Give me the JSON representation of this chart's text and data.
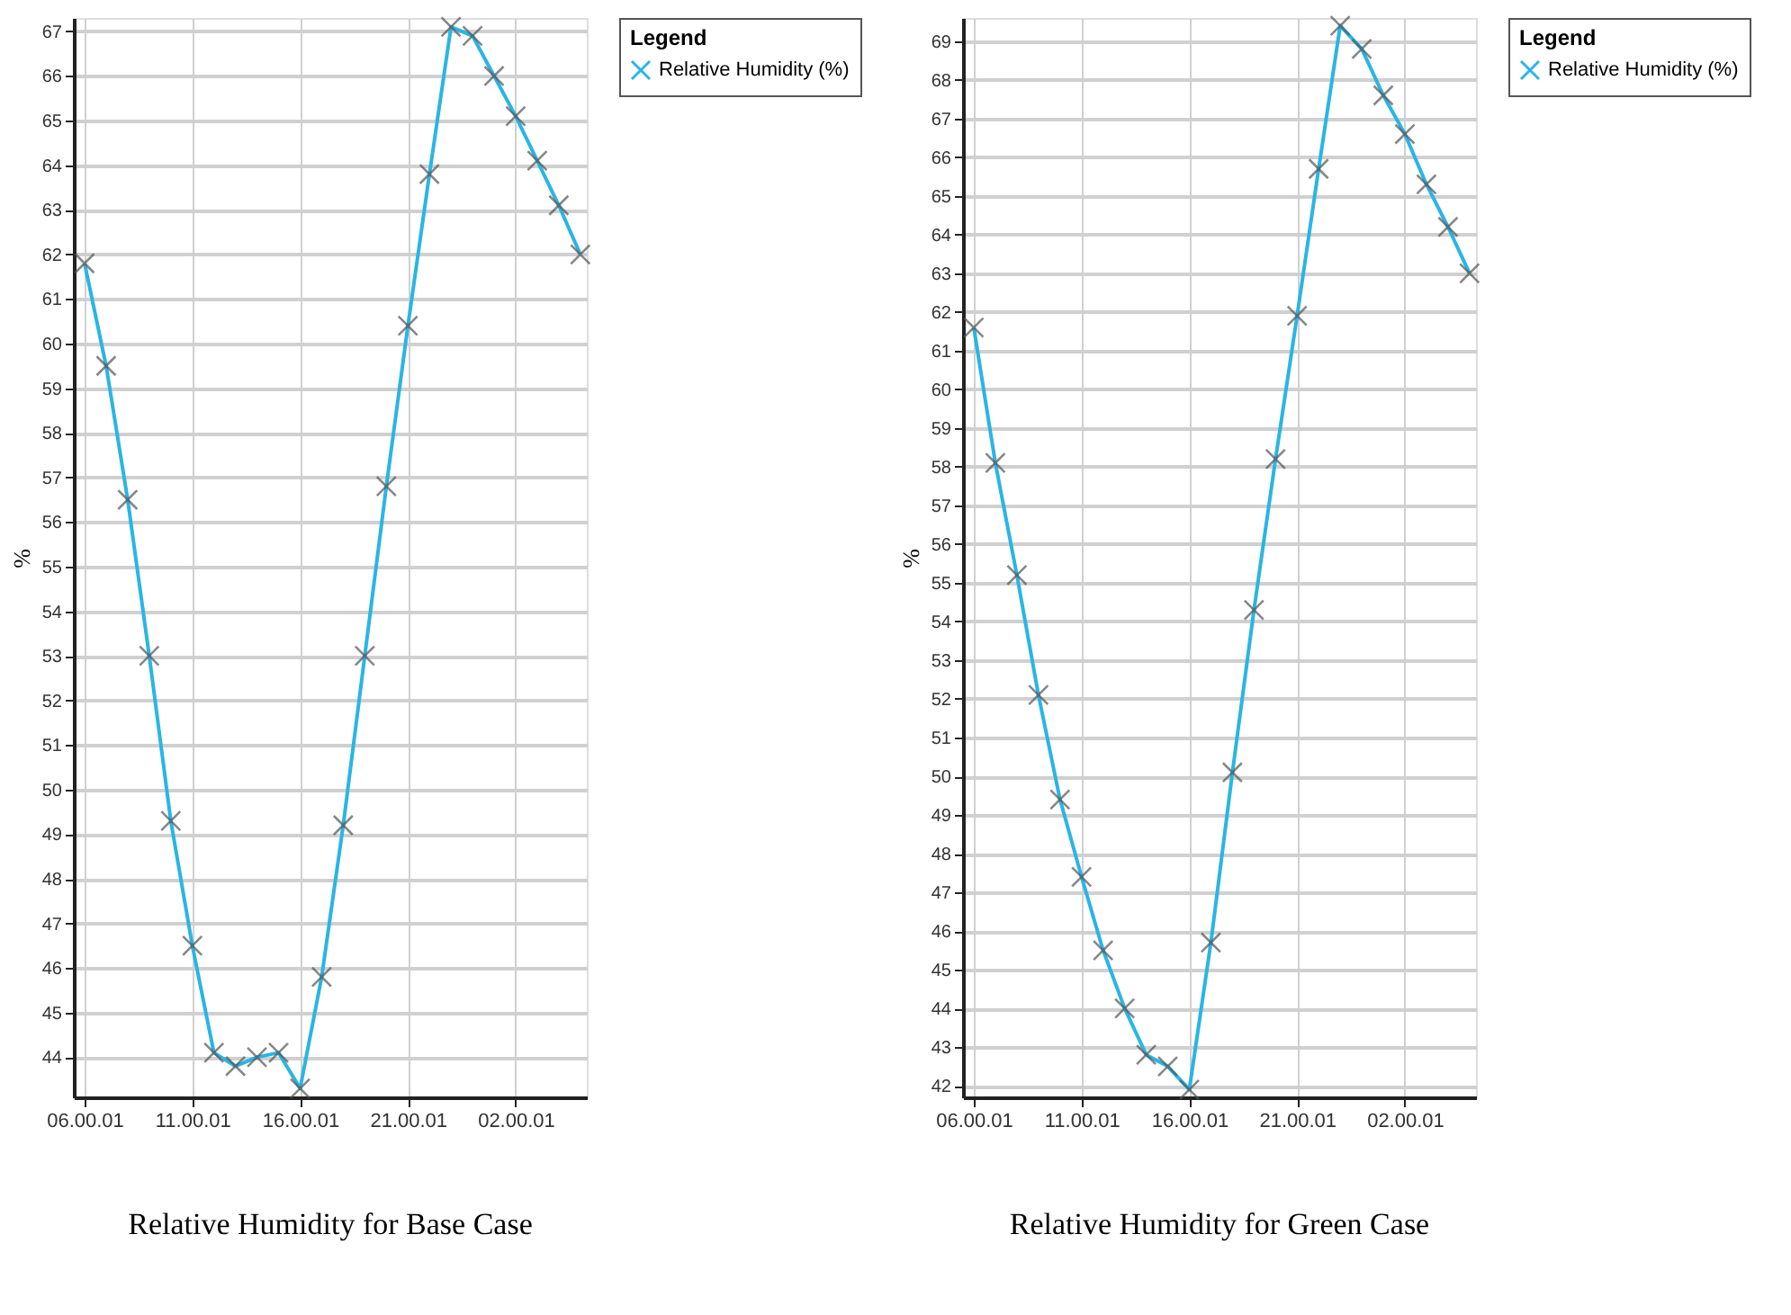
{
  "chart_data": [
    {
      "type": "line",
      "title": "Relative Humidity for Base Case",
      "ylabel": "%",
      "legend_title": "Legend",
      "legend": "right",
      "marker": "cross",
      "line_style": "solid",
      "grid": true,
      "categories": [
        "06.00.01",
        null,
        null,
        null,
        null,
        "11.00.01",
        null,
        null,
        null,
        null,
        "16.00.01",
        null,
        null,
        null,
        null,
        "21.00.01",
        null,
        null,
        null,
        null,
        "02.00.01",
        null,
        null,
        null
      ],
      "series": [
        {
          "name": "Relative Humidity (%)",
          "color": "#29b5e6",
          "values": [
            61.8,
            59.5,
            56.5,
            53.0,
            49.3,
            46.5,
            44.1,
            43.8,
            44.0,
            44.1,
            43.3,
            45.8,
            49.2,
            53.0,
            56.8,
            60.4,
            63.8,
            67.1,
            66.9,
            66.0,
            65.1,
            64.1,
            63.1,
            62.0
          ]
        }
      ],
      "ylim": [
        43.1,
        67.3
      ],
      "yticks": [
        44,
        45,
        46,
        47,
        48,
        49,
        50,
        51,
        52,
        53,
        54,
        55,
        56,
        57,
        58,
        59,
        60,
        61,
        62,
        63,
        64,
        65,
        66,
        67
      ]
    },
    {
      "type": "line",
      "title": "Relative Humidity for Green Case",
      "ylabel": "%",
      "legend_title": "Legend",
      "legend": "right",
      "marker": "cross",
      "line_style": "solid",
      "grid": true,
      "categories": [
        "06.00.01",
        null,
        null,
        null,
        null,
        "11.00.01",
        null,
        null,
        null,
        null,
        "16.00.01",
        null,
        null,
        null,
        null,
        "21.00.01",
        null,
        null,
        null,
        null,
        "02.00.01",
        null,
        null,
        null
      ],
      "series": [
        {
          "name": "Relative Humidity (%)",
          "color": "#29b5e6",
          "values": [
            61.6,
            58.1,
            55.2,
            52.1,
            49.4,
            47.4,
            45.5,
            44.0,
            42.8,
            42.5,
            41.9,
            45.7,
            50.1,
            54.3,
            58.2,
            61.9,
            65.7,
            69.4,
            68.8,
            67.6,
            66.6,
            65.3,
            64.2,
            63.0
          ]
        }
      ],
      "ylim": [
        41.7,
        69.6
      ],
      "yticks": [
        42,
        43,
        44,
        45,
        46,
        47,
        48,
        49,
        50,
        51,
        52,
        53,
        54,
        55,
        56,
        57,
        58,
        59,
        60,
        61,
        62,
        63,
        64,
        65,
        66,
        67,
        68,
        69
      ]
    }
  ]
}
